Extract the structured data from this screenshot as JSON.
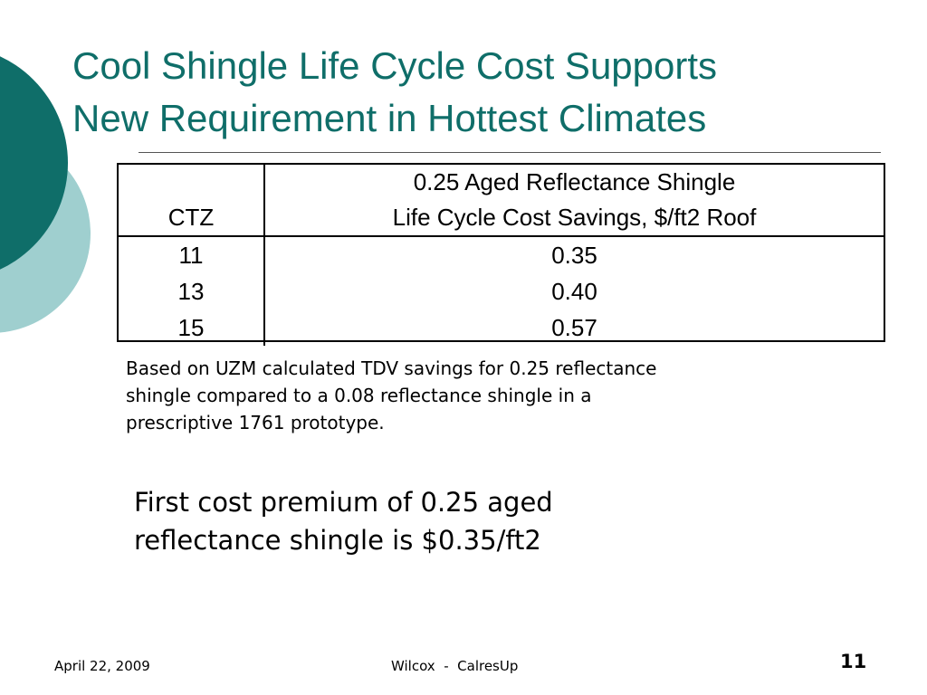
{
  "slide": {
    "title_lines": [
      "Cool Shingle Life Cycle Cost Supports",
      "New Requirement in Hottest Climates"
    ],
    "colors": {
      "title": "#0f6e69",
      "decor_dark": "#0f6e69",
      "decor_light": "#9fcfcf"
    }
  },
  "table": {
    "header": {
      "col1": "CTZ",
      "col2_line1": "0.25 Aged Reflectance Shingle",
      "col2_line2": "Life Cycle Cost Savings, $/ft2 Roof"
    },
    "rows": [
      {
        "ctz": "11",
        "value": "0.35"
      },
      {
        "ctz": "13",
        "value": "0.40"
      },
      {
        "ctz": "15",
        "value": "0.57"
      }
    ]
  },
  "note_lines": [
    "Based on UZM calculated TDV savings for 0.25 reflectance",
    "shingle compared to a 0.08 reflectance shingle in a",
    "prescriptive 1761 prototype."
  ],
  "premium_lines": [
    "First cost premium of 0.25 aged",
    "reflectance shingle is $0.35/ft2"
  ],
  "footer": {
    "date": "April 22, 2009",
    "center": "Wilcox  -  CalresUp",
    "page_number": "11"
  }
}
